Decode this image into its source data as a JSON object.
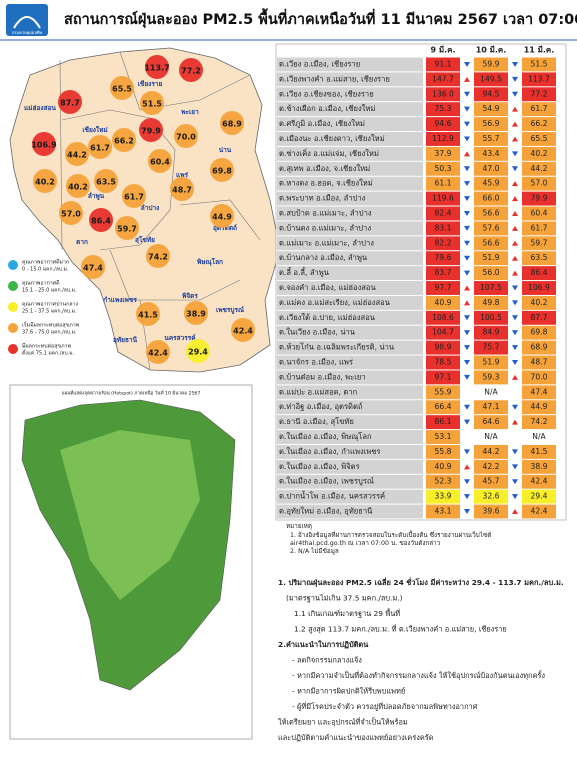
{
  "header": {
    "org": "กรมควบคุมมลพิษ",
    "title": "สถานการณ์ฝุ่นละออง PM2.5 พื้นที่ภาคเหนือวันที่ 11 มีนาคม 2567 เวลา 07:00 น."
  },
  "legend": [
    {
      "label": "คุณภาพอากาศดีมาก",
      "range": "0 - 15.0 มคก./ลบ.ม.",
      "max": 15.0,
      "color": "#2aa8e0"
    },
    {
      "label": "คุณภาพอากาศดี",
      "range": "15.1 - 25.0 มคก./ลบ.ม.",
      "max": 25.0,
      "color": "#3db54a"
    },
    {
      "label": "คุณภาพอากาศปานกลาง",
      "range": "25.1 - 37.5 มคก./ลบ.ม.",
      "max": 37.5,
      "color": "#f8ee2a"
    },
    {
      "label": "เริ่มมีผลกระทบต่อสุขภาพ",
      "range": "37.6 - 75.0 มคก./ลบ.ม.",
      "max": 75.0,
      "color": "#f6a23a"
    },
    {
      "label": "มีผลกระทบต่อสุขภาพ",
      "range": "ตั้งแต่ 75.1 มคก./ลบ.ม.",
      "max": null,
      "color": "#e8302c"
    }
  ],
  "map": {
    "provinces": [
      "เชียงราย",
      "แม่ฮ่องสอน",
      "เชียงใหม่",
      "ลำพูน",
      "ลำปาง",
      "พะเยา",
      "น่าน",
      "แพร่",
      "อุตรดิตถ์",
      "สุโขทัย",
      "ตาก",
      "พิษณุโลก",
      "กำแพงเพชร",
      "พิจิตร",
      "เพชรบูรณ์",
      "นครสวรรค์",
      "อุทัยธานี"
    ]
  },
  "hotspot_map": {
    "title": "แผนที่แสดงจุดความร้อน (Hotspot) ภาคเหนือ วันที่ 10 มีนาคม 2567"
  },
  "table": {
    "columns": [
      "9 มี.ค.",
      "10 มี.ค.",
      "11 มี.ค."
    ],
    "rows": [
      {
        "station": "ต.เวียง อ.เมือง, เชียงราย",
        "values": [
          "91.1",
          "59.9",
          "51.5"
        ]
      },
      {
        "station": "ต.เวียงพางคำ อ.แม่สาย, เชียงราย",
        "values": [
          "147.7",
          "149.5",
          "113.7"
        ]
      },
      {
        "station": "ต.เวียง อ.เชียงของ, เชียงราย",
        "values": [
          "136.0",
          "94.5",
          "77.2"
        ]
      },
      {
        "station": "ต.ช้างเผือก อ.เมือง, เชียงใหม่",
        "values": [
          "75.3",
          "54.9",
          "61.7"
        ]
      },
      {
        "station": "ต.ศรีภูมิ อ.เมือง, เชียงใหม่",
        "values": [
          "94.6",
          "56.9",
          "66.2"
        ]
      },
      {
        "station": "ต.เมืองนะ อ.เชียงดาว, เชียงใหม่",
        "values": [
          "112.9",
          "55.7",
          "65.5"
        ]
      },
      {
        "station": "ต.ช่างเคิ่ง อ.แม่แจ่ม, เชียงใหม่",
        "values": [
          "37.9",
          "43.4",
          "40.2"
        ]
      },
      {
        "station": "ต.สุเทพ อ.เมือง, จ.เชียงใหม่",
        "values": [
          "50.3",
          "47.0",
          "44.2"
        ]
      },
      {
        "station": "ต.หางดง อ.ฮอด, จ.เชียงใหม่",
        "values": [
          "61.1",
          "45.9",
          "57.0"
        ]
      },
      {
        "station": "ต.พระบาท อ.เมือง, ลำปาง",
        "values": [
          "119.6",
          "66.0",
          "79.9"
        ]
      },
      {
        "station": "ต.สบป้าด อ.แม่เมาะ, ลำปาง",
        "values": [
          "82.4",
          "56.6",
          "60.4"
        ]
      },
      {
        "station": "ต.บ้านดง อ.แม่เมาะ, ลำปาง",
        "values": [
          "83.1",
          "57.6",
          "61.7"
        ]
      },
      {
        "station": "ต.แม่เมาะ อ.แม่เมาะ, ลำปาง",
        "values": [
          "82.2",
          "56.6",
          "59.7"
        ]
      },
      {
        "station": "ต.บ้านกลาง อ.เมือง, ลำพูน",
        "values": [
          "79.6",
          "51.9",
          "63.5"
        ]
      },
      {
        "station": "ต.ลี้ อ.ลี้, ลำพูน",
        "values": [
          "83.7",
          "56.0",
          "86.4"
        ]
      },
      {
        "station": "ต.จองคำ อ.เมือง, แม่ฮ่องสอน",
        "values": [
          "97.7",
          "107.5",
          "106.9"
        ]
      },
      {
        "station": "ต.แม่คง อ.แม่สะเรียง, แม่ฮ่องสอน",
        "values": [
          "40.9",
          "49.8",
          "40.2"
        ]
      },
      {
        "station": "ต.เวียงใต้ อ.ปาย, แม่ฮ่องสอน",
        "values": [
          "108.6",
          "100.5",
          "87.7"
        ]
      },
      {
        "station": "ต.ในเวียง อ.เมือง, น่าน",
        "values": [
          "104.7",
          "84.9",
          "69.8"
        ]
      },
      {
        "station": "ต.ห้วยโก๋น อ.เฉลิมพระเกียรติ, น่าน",
        "values": [
          "98.9",
          "75.7",
          "68.9"
        ]
      },
      {
        "station": "ต.นาจักร อ.เมือง, แพร่",
        "values": [
          "78.5",
          "51.9",
          "48.7"
        ]
      },
      {
        "station": "ต.บ้านต๋อม อ.เมือง, พะเยา",
        "values": [
          "97.1",
          "59.3",
          "70.0"
        ]
      },
      {
        "station": "ต.แม่ปะ อ.แม่สอด, ตาก",
        "values": [
          "55.9",
          "N/A",
          "47.4"
        ]
      },
      {
        "station": "ต.ท่าอิฐ อ.เมือง, อุตรดิตถ์",
        "values": [
          "66.4",
          "47.1",
          "44.9"
        ]
      },
      {
        "station": "ต.ธานี อ.เมือง, สุโขทัย",
        "values": [
          "86.1",
          "64.6",
          "74.2"
        ]
      },
      {
        "station": "ต.ในเมือง อ.เมือง, พิษณุโลก",
        "values": [
          "53.1",
          "N/A",
          "N/A"
        ]
      },
      {
        "station": "ต.ในเมือง อ.เมือง, กำแพงเพชร",
        "values": [
          "55.8",
          "44.2",
          "41.5"
        ]
      },
      {
        "station": "ต.ในเมือง อ.เมือง, พิจิตร",
        "values": [
          "40.9",
          "42.2",
          "38.9"
        ]
      },
      {
        "station": "ต.ในเมือง อ.เมือง, เพชรบูรณ์",
        "values": [
          "52.3",
          "45.7",
          "42.4"
        ]
      },
      {
        "station": "ต.ปากน้ำโพ อ.เมือง, นครสวรรค์",
        "values": [
          "33.9",
          "32.6",
          "29.4"
        ]
      },
      {
        "station": "ต.อุทัยใหม่ อ.เมือง, อุทัยธานี",
        "values": [
          "43.1",
          "39.6",
          "42.4"
        ]
      }
    ]
  },
  "notes": {
    "title": "หมายเหตุ",
    "items": [
      "1. อ้างอิงข้อมูลที่ผ่านการตรวจสอบในระดับเบื้องต้น ซึ่งรายงานผ่านเว็บไซต์",
      "air4thai.pcd.go.th ณ เวลา 07:00 น. ของวันดังกล่าว",
      "2. N/A ไม่มีข้อมูล"
    ]
  },
  "summary": [
    "1. ปริมาณฝุ่นละออง PM2.5 เฉลี่ย 24 ชั่วโมง มีค่าระหว่าง 29.4 - 113.7 มคก./ลบ.ม.",
    "(มาตรฐานไม่เกิน 37.5 มคก./ลบ.ม.)",
    "1.1 เกินเกณฑ์มาตรฐาน 29 พื้นที่",
    "1.2 สูงสุด 113.7 มคก./ลบ.ม. ที่ ต.เวียงพางคำ อ.แม่สาย, เชียงราย",
    "2.คำแนะนำในการปฏิบัติตน",
    "- ลดกิจกรรมกลางแจ้ง",
    "- หากมีความจำเป็นที่ต้องทำกิจกรรมกลางแจ้ง ให้ใช้อุปกรณ์ป้องกันตนเองทุกครั้ง",
    "- หากมีอาการผิดปกติให้รีบพบแพทย์",
    "- ผู้ที่มีโรคประจำตัว ควรอยู่ที่ปลอดภัยจากมลพิษทางอากาศ",
    "ให้เตรียมยา และอุปกรณ์ที่จำเป็นให้พร้อม",
    "และปฏิบัติตามคำแนะนำของแพทย์อย่างเคร่งครัด"
  ]
}
